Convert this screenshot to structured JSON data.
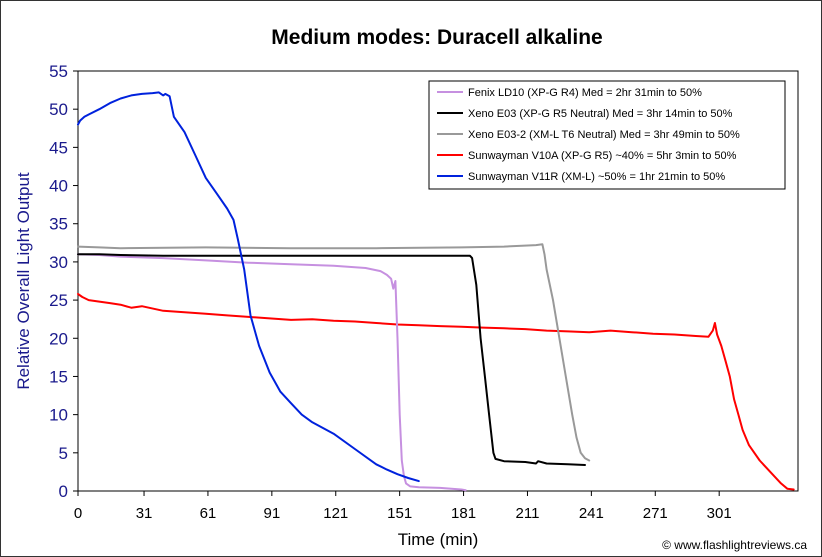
{
  "chart_data": {
    "type": "line",
    "title": "Medium modes: Duracell alkaline",
    "xlabel": "Time (min)",
    "ylabel": "Relative Overall Light Output",
    "xlim": [
      0,
      338
    ],
    "ylim": [
      0,
      55
    ],
    "xticks": [
      0,
      31,
      61,
      91,
      121,
      151,
      181,
      211,
      241,
      271,
      301
    ],
    "yticks": [
      0,
      5,
      10,
      15,
      20,
      25,
      30,
      35,
      40,
      45,
      50,
      55
    ],
    "grid": false,
    "legend_position": "top-right",
    "credit": "© www.flashlightreviews.ca",
    "series": [
      {
        "name": "Fenix LD10 (XP-G R4) Med = 2hr 31min to 50%",
        "color": "#c690e0",
        "x": [
          0,
          10,
          20,
          40,
          60,
          80,
          100,
          120,
          135,
          142,
          145,
          147,
          148,
          149,
          150,
          151,
          152,
          153,
          154,
          156,
          160,
          170,
          180,
          182
        ],
        "y": [
          31,
          30.9,
          30.7,
          30.5,
          30.2,
          29.9,
          29.7,
          29.5,
          29.2,
          28.8,
          28.3,
          27.8,
          26.5,
          27.5,
          20,
          10,
          4,
          2,
          1,
          0.6,
          0.5,
          0.4,
          0.2,
          0.1
        ]
      },
      {
        "name": "Xeno E03 (XP-G R5 Neutral) Med = 3hr 14min to 50%",
        "color": "#000000",
        "x": [
          0,
          10,
          20,
          40,
          60,
          80,
          100,
          120,
          140,
          160,
          180,
          184,
          185,
          187,
          189,
          191,
          193,
          195,
          196,
          200,
          210,
          215,
          216,
          220,
          230,
          238
        ],
        "y": [
          31,
          31,
          30.9,
          30.8,
          30.8,
          30.8,
          30.8,
          30.8,
          30.8,
          30.8,
          30.8,
          30.8,
          30.5,
          27,
          20,
          15,
          10,
          5,
          4.2,
          3.9,
          3.8,
          3.6,
          3.9,
          3.6,
          3.5,
          3.4
        ]
      },
      {
        "name": "Xeno E03-2 (XM-L T6 Neutral) Med = 3hr 49min to 50%",
        "color": "#999999",
        "x": [
          0,
          10,
          20,
          60,
          100,
          140,
          180,
          200,
          215,
          218,
          219,
          220,
          223,
          226,
          229,
          232,
          234,
          236,
          238,
          240
        ],
        "y": [
          32,
          31.9,
          31.8,
          31.9,
          31.8,
          31.8,
          31.9,
          32,
          32.2,
          32.3,
          31,
          29,
          25,
          20,
          15,
          10,
          7,
          5,
          4.3,
          4
        ]
      },
      {
        "name": "Sunwayman V10A (XP-G R5) ~40% = 5hr 3min to 50%",
        "color": "#ff0000",
        "x": [
          0,
          2,
          5,
          10,
          15,
          20,
          25,
          30,
          40,
          50,
          60,
          70,
          80,
          90,
          100,
          110,
          120,
          130,
          140,
          150,
          160,
          170,
          180,
          190,
          200,
          210,
          220,
          230,
          240,
          250,
          260,
          270,
          280,
          290,
          296,
          298,
          299,
          300,
          302,
          304,
          306,
          308,
          310,
          312,
          315,
          320,
          325,
          330,
          333,
          336
        ],
        "y": [
          25.8,
          25.4,
          25,
          24.8,
          24.6,
          24.4,
          24,
          24.2,
          23.6,
          23.4,
          23.2,
          23,
          22.8,
          22.6,
          22.4,
          22.5,
          22.3,
          22.2,
          22,
          21.8,
          21.7,
          21.6,
          21.5,
          21.4,
          21.3,
          21.2,
          21,
          20.9,
          20.8,
          21,
          20.8,
          20.6,
          20.5,
          20.3,
          20.2,
          21,
          22,
          20.5,
          19,
          17,
          15,
          12,
          10,
          8,
          6,
          4,
          2.5,
          1,
          0.3,
          0.2
        ]
      },
      {
        "name": "Sunwayman V11R (XM-L) ~50% = 1hr 21min to 50%",
        "color": "#0022dd",
        "x": [
          0,
          1,
          3,
          5,
          10,
          15,
          20,
          25,
          30,
          35,
          38,
          40,
          41,
          43,
          45,
          50,
          55,
          60,
          65,
          70,
          73,
          75,
          78,
          81,
          85,
          90,
          95,
          100,
          105,
          110,
          120,
          130,
          140,
          145,
          150,
          155,
          160
        ],
        "y": [
          48,
          48.5,
          49,
          49.3,
          50,
          50.8,
          51.4,
          51.8,
          52,
          52.1,
          52.2,
          51.8,
          52,
          51.7,
          49,
          47,
          44,
          41,
          39,
          37,
          35.5,
          33,
          29,
          23,
          19,
          15.5,
          13,
          11.5,
          10,
          9,
          7.5,
          5.5,
          3.5,
          2.8,
          2.2,
          1.7,
          1.3
        ]
      }
    ]
  }
}
